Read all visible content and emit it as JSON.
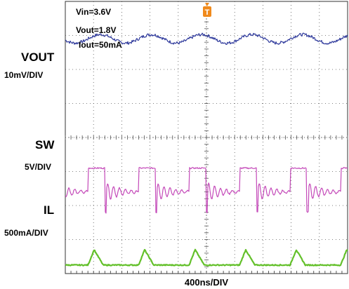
{
  "conditions": [
    "Vin=3.6V",
    "Vout=1.8V",
    "Iout=50mA"
  ],
  "trigger_marker": "T",
  "colors": {
    "vout": "#2f3a9c",
    "sw": "#c44ab9",
    "il": "#63c02a",
    "trigger": "#f08a1c",
    "grid": "#555555"
  },
  "chart_data": {
    "type": "line",
    "title": "",
    "xlabel": "400ns/DIV",
    "grid": true,
    "x_divisions": 10,
    "y_divisions": 8,
    "channels": [
      {
        "name": "VOUT",
        "scale": "10mV/DIV",
        "color": "#2f3a9c",
        "shape": "ripple",
        "period_div": 1.79,
        "peak_to_peak_div": 0.25,
        "baseline_div": 6.9
      },
      {
        "name": "SW",
        "scale": "5V/DIV",
        "color": "#c44ab9",
        "shape": "switching-with-ringing",
        "period_div": 1.79,
        "high_div": 3.1,
        "low_div": 2.3,
        "baseline_div": 2.3
      },
      {
        "name": "IL",
        "scale": "500mA/DIV",
        "color": "#63c02a",
        "shape": "triangle-pulses",
        "period_div": 1.79,
        "peak_div": 0.45,
        "baseline_div": 0.25
      }
    ]
  }
}
